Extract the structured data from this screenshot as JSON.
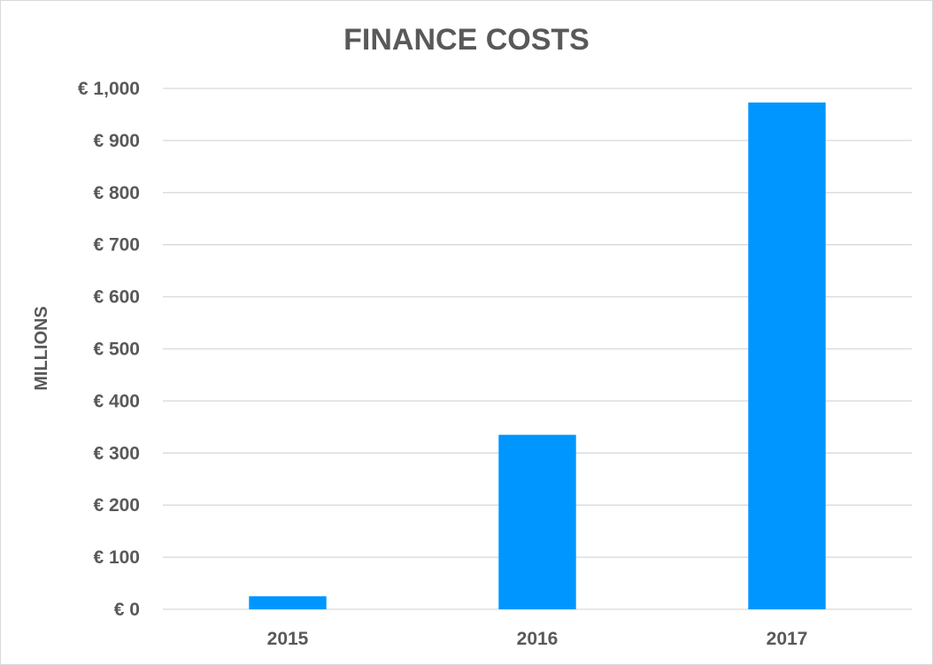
{
  "chart_data": {
    "type": "bar",
    "title": "FINANCE COSTS",
    "xlabel": "",
    "ylabel": "MILLIONS",
    "categories": [
      "2015",
      "2016",
      "2017"
    ],
    "values": [
      25,
      335,
      973
    ],
    "ylim": [
      0,
      1000
    ],
    "ytick_step": 100,
    "ytick_labels": [
      "€ 0",
      "€ 100",
      "€ 200",
      "€ 300",
      "€ 400",
      "€ 500",
      "€ 600",
      "€ 700",
      "€ 800",
      "€ 900",
      "€ 1,000"
    ],
    "bar_color": "#0096FF",
    "grid": true,
    "legend": "none"
  }
}
